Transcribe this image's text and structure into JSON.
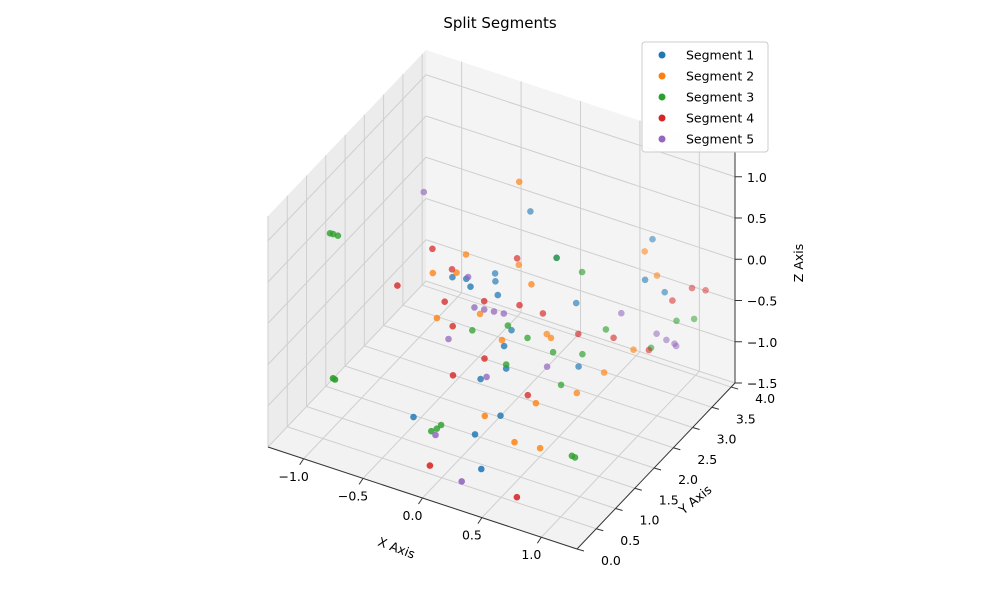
{
  "chart_data": {
    "type": "scatter",
    "title": "Split Segments",
    "xlabel": "X Axis",
    "ylabel": "Y Axis",
    "zlabel": "Z Axis",
    "xlim": [
      -1.3,
      1.3
    ],
    "ylim": [
      0.0,
      4.1
    ],
    "zlim": [
      -1.5,
      1.3
    ],
    "xticks": [
      "−1.0",
      "−0.5",
      "0.0",
      "0.5",
      "1.0"
    ],
    "yticks": [
      "0.0",
      "0.5",
      "1.0",
      "1.5",
      "2.0",
      "2.5",
      "3.0",
      "3.5",
      "4.0"
    ],
    "zticks": [
      "−1.5",
      "−1.0",
      "−0.5",
      "0.0",
      "0.5",
      "1.0"
    ],
    "grid": true,
    "legend_position": "top-right",
    "series": [
      {
        "name": "Segment 1",
        "color": "#1f77b4",
        "points": [
          [
            -0.15,
            1.6,
            0.3
          ],
          [
            0.05,
            1.8,
            0.1
          ],
          [
            -0.1,
            2.2,
            0.0
          ],
          [
            0.2,
            1.5,
            -0.3
          ],
          [
            0.25,
            1.4,
            -0.5
          ],
          [
            0.1,
            2.0,
            -0.4
          ],
          [
            -0.3,
            1.7,
            0.2
          ],
          [
            0.35,
            2.4,
            0.4
          ],
          [
            0.3,
            1.1,
            -0.9
          ],
          [
            0.15,
            0.9,
            -1.1
          ],
          [
            0.9,
            3.0,
            0.1
          ],
          [
            1.0,
            3.2,
            -0.1
          ],
          [
            0.8,
            3.5,
            0.3
          ],
          [
            0.45,
            2.6,
            -0.2
          ],
          [
            -0.2,
            2.5,
            -0.1
          ],
          [
            0.1,
            1.2,
            -0.6
          ],
          [
            0.0,
            2.8,
            0.6
          ],
          [
            -0.05,
            1.4,
            0.35
          ],
          [
            0.6,
            2.2,
            -0.7
          ],
          [
            0.3,
            0.6,
            -1.3
          ],
          [
            -0.4,
            1.0,
            -1.2
          ]
        ]
      },
      {
        "name": "Segment 2",
        "color": "#ff7f0e",
        "points": [
          [
            0.1,
            2.2,
            1.3
          ],
          [
            -0.2,
            1.5,
            0.4
          ],
          [
            0.3,
            1.9,
            0.3
          ],
          [
            -0.1,
            1.8,
            -0.2
          ],
          [
            0.4,
            2.1,
            -0.4
          ],
          [
            -0.3,
            1.3,
            -0.1
          ],
          [
            0.2,
            1.0,
            -0.9
          ],
          [
            0.5,
            1.4,
            -0.8
          ],
          [
            0.6,
            1.2,
            -1.2
          ],
          [
            0.45,
            1.0,
            -1.1
          ],
          [
            0.9,
            2.7,
            -0.6
          ],
          [
            0.75,
            2.4,
            -0.8
          ],
          [
            1.0,
            3.0,
            0.2
          ],
          [
            -0.25,
            1.9,
            0.4
          ],
          [
            0.0,
            2.5,
            0.1
          ],
          [
            0.15,
            1.6,
            -0.3
          ],
          [
            0.3,
            2.3,
            -0.5
          ],
          [
            -0.4,
            1.5,
            0.3
          ],
          [
            0.8,
            3.3,
            0.25
          ],
          [
            0.65,
            2.0,
            -0.9
          ]
        ]
      },
      {
        "name": "Segment 3",
        "color": "#2ca02c",
        "points": [
          [
            -1.2,
            1.3,
            0.5
          ],
          [
            -1.15,
            1.35,
            0.47
          ],
          [
            -1.18,
            1.32,
            0.49
          ],
          [
            -0.85,
            0.3,
            -0.6
          ],
          [
            -0.84,
            0.32,
            -0.62
          ],
          [
            -0.25,
            1.0,
            -1.3
          ],
          [
            -0.2,
            1.1,
            -1.25
          ],
          [
            -0.22,
            1.05,
            -1.28
          ],
          [
            0.9,
            1.1,
            -1.1
          ],
          [
            0.92,
            1.12,
            -1.12
          ],
          [
            0.3,
            1.8,
            -0.3
          ],
          [
            0.45,
            2.0,
            -0.5
          ],
          [
            0.6,
            2.3,
            -0.6
          ],
          [
            0.2,
            1.6,
            -0.1
          ],
          [
            1.1,
            3.2,
            -0.4
          ],
          [
            1.15,
            3.5,
            -0.5
          ],
          [
            0.95,
            3.0,
            -0.7
          ],
          [
            0.7,
            2.6,
            -0.4
          ],
          [
            -0.1,
            1.6,
            -0.3
          ],
          [
            0.35,
            2.4,
            0.4
          ],
          [
            0.55,
            1.9,
            -0.8
          ],
          [
            0.25,
            1.4,
            -0.45
          ],
          [
            0.5,
            2.6,
            0.2
          ]
        ]
      },
      {
        "name": "Segment 4",
        "color": "#d62728",
        "points": [
          [
            -0.6,
            1.2,
            0.2
          ],
          [
            -0.5,
            1.8,
            0.4
          ],
          [
            0.0,
            1.6,
            0.1
          ],
          [
            0.2,
            1.9,
            0.0
          ],
          [
            0.1,
            1.3,
            -0.4
          ],
          [
            0.3,
            2.2,
            -0.2
          ],
          [
            -0.1,
            1.1,
            -0.6
          ],
          [
            0.4,
            1.5,
            -0.8
          ],
          [
            0.6,
            0.6,
            -1.5
          ],
          [
            -0.1,
            0.5,
            -1.4
          ],
          [
            1.1,
            3.6,
            -0.2
          ],
          [
            1.15,
            3.8,
            -0.3
          ],
          [
            1.0,
            3.4,
            -0.3
          ],
          [
            0.5,
            2.5,
            -0.5
          ],
          [
            -0.3,
            1.5,
            0.0
          ],
          [
            0.05,
            2.3,
            0.3
          ],
          [
            -0.2,
            1.4,
            -0.2
          ],
          [
            0.7,
            2.8,
            -0.6
          ],
          [
            0.9,
            3.1,
            -0.8
          ],
          [
            -0.4,
            2.0,
            0.1
          ]
        ]
      },
      {
        "name": "Segment 5",
        "color": "#9467bd",
        "points": [
          [
            -0.8,
            2.5,
            0.6
          ],
          [
            0.0,
            1.6,
            0.0
          ],
          [
            0.05,
            1.7,
            -0.05
          ],
          [
            -0.05,
            1.5,
            0.05
          ],
          [
            0.1,
            1.8,
            -0.1
          ],
          [
            -0.3,
            1.6,
            -0.5
          ],
          [
            0.2,
            0.4,
            -1.4
          ],
          [
            -0.15,
            0.8,
            -1.2
          ],
          [
            0.9,
            3.3,
            -0.7
          ],
          [
            0.95,
            3.4,
            -0.8
          ],
          [
            1.0,
            3.5,
            -0.9
          ],
          [
            1.05,
            3.3,
            -0.75
          ],
          [
            0.7,
            3.0,
            -0.4
          ],
          [
            0.4,
            2.0,
            -0.7
          ],
          [
            -0.2,
            1.8,
            0.2
          ],
          [
            0.15,
            1.2,
            -0.55
          ]
        ]
      }
    ]
  }
}
